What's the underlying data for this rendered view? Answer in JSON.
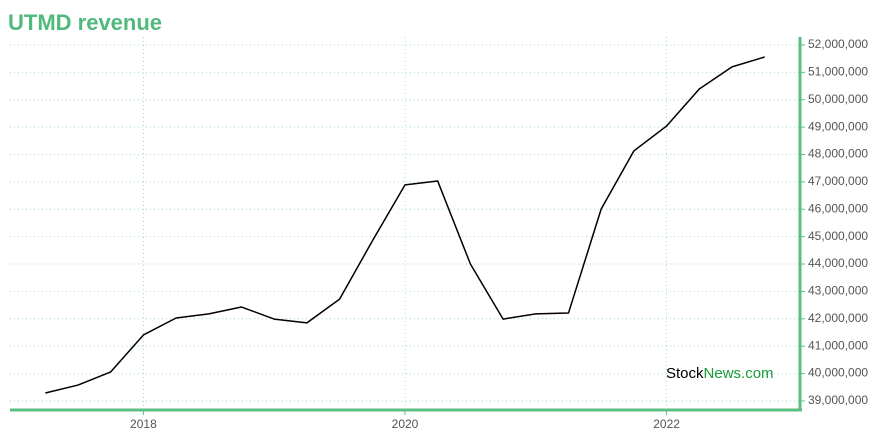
{
  "chart_data": {
    "type": "line",
    "title": "UTMD revenue",
    "watermark": [
      "Stock",
      "News.com"
    ],
    "x": [
      2017.25,
      2017.5,
      2017.75,
      2018.0,
      2018.25,
      2018.5,
      2018.75,
      2019.0,
      2019.25,
      2019.5,
      2019.75,
      2020.0,
      2020.25,
      2020.5,
      2020.75,
      2021.0,
      2021.25,
      2021.5,
      2021.75,
      2022.0,
      2022.25,
      2022.5,
      2022.75
    ],
    "values": [
      39290000,
      39580000,
      40060000,
      41410000,
      42030000,
      42180000,
      42430000,
      41990000,
      41850000,
      42720000,
      44840000,
      46890000,
      47030000,
      44000000,
      41990000,
      42180000,
      42210000,
      46010000,
      48130000,
      49040000,
      50390000,
      51200000,
      51560000
    ],
    "color": "#000000",
    "xlim": [
      2016.98,
      2023.02
    ],
    "xticks": [
      2018,
      2020,
      2022
    ],
    "ylim": [
      38670000,
      52290000
    ],
    "yticks": [
      {
        "value": 39000000,
        "label": "39,000,000"
      },
      {
        "value": 40000000,
        "label": "40,000,000"
      },
      {
        "value": 41000000,
        "label": "41,000,000"
      },
      {
        "value": 42000000,
        "label": "42,000,000"
      },
      {
        "value": 43000000,
        "label": "43,000,000"
      },
      {
        "value": 44000000,
        "label": "44,000,000"
      },
      {
        "value": 45000000,
        "label": "45,000,000"
      },
      {
        "value": 46000000,
        "label": "46,000,000"
      },
      {
        "value": 47000000,
        "label": "47,000,000"
      },
      {
        "value": 48000000,
        "label": "48,000,000"
      },
      {
        "value": 49000000,
        "label": "49,000,000"
      },
      {
        "value": 50000000,
        "label": "50,000,000"
      },
      {
        "value": 51000000,
        "label": "51,000,000"
      },
      {
        "value": 52000000,
        "label": "52,000,000"
      }
    ],
    "grid": true,
    "axis_color": "#5bbf82",
    "grid_color": "#9fd9c7"
  }
}
